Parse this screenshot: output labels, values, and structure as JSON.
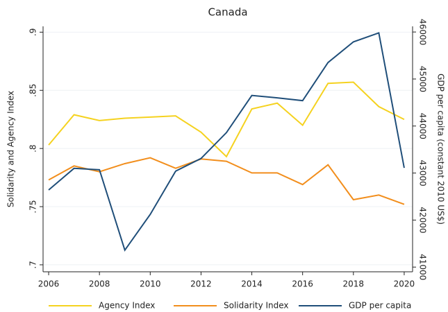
{
  "chart_data": {
    "type": "line",
    "title": "Canada",
    "ylabel": "Solidarity and Agency Index",
    "y2label": "GDP per capita (constant 2010 US$)",
    "x": [
      2006,
      2007,
      2008,
      2009,
      2010,
      2011,
      2012,
      2013,
      2014,
      2015,
      2016,
      2017,
      2018,
      2019,
      2020
    ],
    "xlim": [
      2005.78,
      2020.33
    ],
    "xticks": [
      2006,
      2008,
      2010,
      2012,
      2014,
      2016,
      2018,
      2020
    ],
    "ylim": [
      0.694,
      0.905
    ],
    "yticks": [
      {
        "value": 0.7,
        "label": ".7"
      },
      {
        "value": 0.75,
        "label": ".75"
      },
      {
        "value": 0.8,
        "label": ".8"
      },
      {
        "value": 0.85,
        "label": ".85"
      },
      {
        "value": 0.9,
        "label": ".9"
      }
    ],
    "y2lim": [
      40900,
      46120
    ],
    "y2ticks": [
      41000,
      42000,
      43000,
      44000,
      45000,
      46000
    ],
    "grid": true,
    "legend": "bottom",
    "series": [
      {
        "name": "Agency Index",
        "color": "#f5d21f",
        "values": [
          0.803,
          0.829,
          0.824,
          0.826,
          0.827,
          0.828,
          0.814,
          0.793,
          0.834,
          0.839,
          0.82,
          0.856,
          0.857,
          0.836,
          0.825
        ]
      },
      {
        "name": "Solidarity Index",
        "color": "#f28e1c",
        "values": [
          0.773,
          0.785,
          0.78,
          0.787,
          0.792,
          0.783,
          0.791,
          0.789,
          0.779,
          0.779,
          0.769,
          0.786,
          0.756,
          0.76,
          0.752
        ]
      },
      {
        "name": "GDP per capita",
        "color": "#1f4e79",
        "axis": "y2",
        "values": [
          42640,
          43100,
          43070,
          41360,
          42120,
          43040,
          43310,
          43860,
          44650,
          44600,
          44540,
          45350,
          45790,
          45980,
          43110
        ]
      }
    ]
  }
}
